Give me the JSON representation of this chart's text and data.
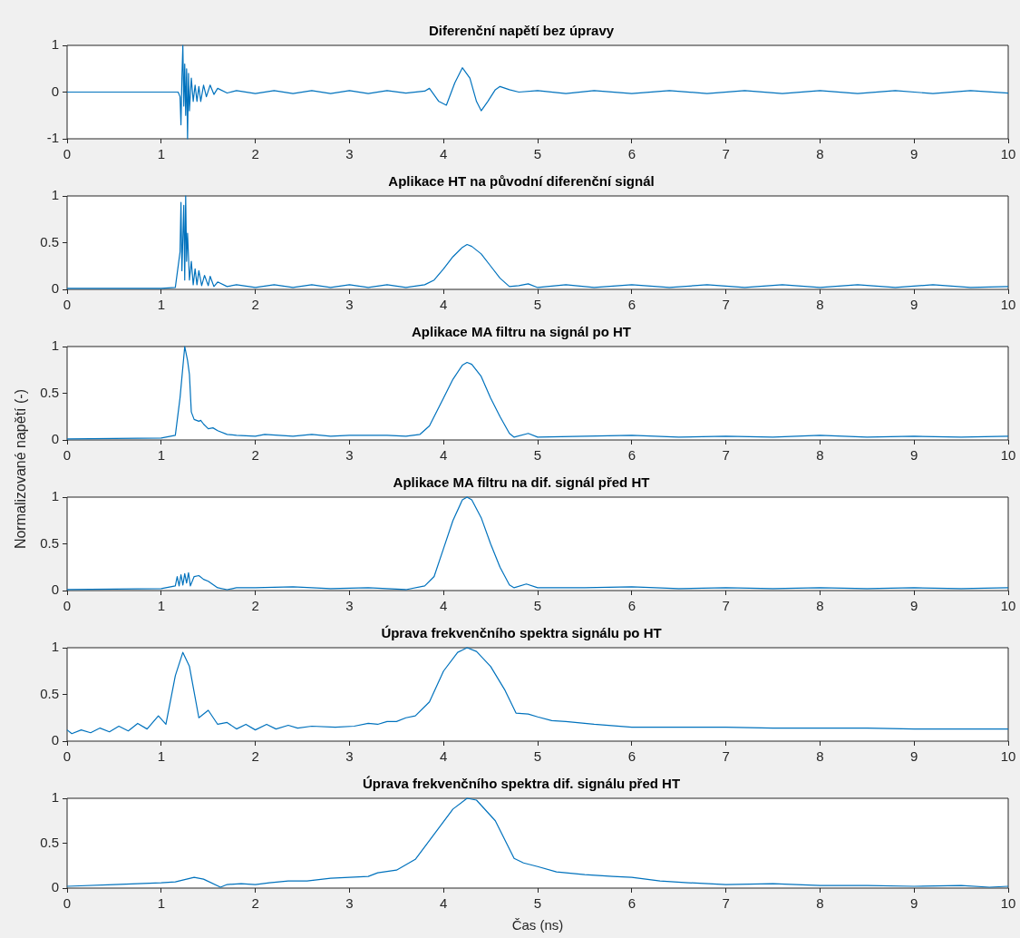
{
  "chart_data": [
    {
      "type": "line",
      "title": "Diferenční napětí bez úpravy",
      "color": "#0072bd",
      "marker": "none",
      "grid": false,
      "xlim": [
        0,
        10
      ],
      "xticks": [
        0,
        1,
        2,
        3,
        4,
        5,
        6,
        7,
        8,
        9,
        10
      ],
      "ylim": [
        -1,
        1
      ],
      "yticks": [
        -1,
        0,
        1
      ],
      "x": [
        0,
        1.18,
        1.2,
        1.21,
        1.22,
        1.23,
        1.24,
        1.25,
        1.26,
        1.27,
        1.28,
        1.29,
        1.3,
        1.32,
        1.34,
        1.36,
        1.38,
        1.4,
        1.42,
        1.45,
        1.48,
        1.52,
        1.56,
        1.6,
        1.7,
        1.8,
        2.0,
        2.2,
        2.4,
        2.6,
        2.8,
        3.0,
        3.2,
        3.4,
        3.6,
        3.8,
        3.85,
        3.95,
        4.03,
        4.12,
        4.2,
        4.28,
        4.35,
        4.4,
        4.47,
        4.55,
        4.6,
        4.7,
        4.8,
        5.0,
        5.3,
        5.6,
        6.0,
        6.4,
        6.8,
        7.2,
        7.6,
        8.0,
        8.4,
        8.8,
        9.2,
        9.6,
        10
      ],
      "values": [
        0,
        0,
        -0.1,
        -0.7,
        0.3,
        1.0,
        -0.3,
        0.6,
        -0.5,
        0.5,
        -1.0,
        0.4,
        -0.4,
        0.3,
        -0.2,
        0.15,
        -0.2,
        0.12,
        -0.2,
        0.15,
        -0.1,
        0.15,
        -0.05,
        0.08,
        -0.02,
        0.03,
        -0.03,
        0.03,
        -0.03,
        0.03,
        -0.03,
        0.03,
        -0.03,
        0.03,
        -0.02,
        0.02,
        0.08,
        -0.2,
        -0.28,
        0.2,
        0.52,
        0.3,
        -0.2,
        -0.4,
        -0.2,
        0.05,
        0.12,
        0.05,
        0,
        0.03,
        -0.03,
        0.03,
        -0.03,
        0.03,
        -0.03,
        0.03,
        -0.03,
        0.03,
        -0.03,
        0.03,
        -0.03,
        0.03,
        -0.02
      ]
    },
    {
      "type": "line",
      "title": "Aplikace HT na původní diferenční signál",
      "color": "#0072bd",
      "marker": "none",
      "grid": false,
      "xlim": [
        0,
        10
      ],
      "xticks": [
        0,
        1,
        2,
        3,
        4,
        5,
        6,
        7,
        8,
        9,
        10
      ],
      "ylim": [
        0,
        1
      ],
      "yticks": [
        0,
        0.5,
        1
      ],
      "x": [
        0,
        1.0,
        1.15,
        1.2,
        1.21,
        1.22,
        1.24,
        1.25,
        1.26,
        1.27,
        1.28,
        1.3,
        1.32,
        1.34,
        1.36,
        1.38,
        1.4,
        1.43,
        1.46,
        1.5,
        1.52,
        1.56,
        1.6,
        1.7,
        1.8,
        2.0,
        2.2,
        2.4,
        2.6,
        2.8,
        3.0,
        3.2,
        3.4,
        3.6,
        3.8,
        3.9,
        4.0,
        4.1,
        4.2,
        4.25,
        4.3,
        4.4,
        4.5,
        4.6,
        4.7,
        4.8,
        4.9,
        5.0,
        5.3,
        5.6,
        6.0,
        6.4,
        6.8,
        7.2,
        7.6,
        8.0,
        8.4,
        8.8,
        9.2,
        9.6,
        10
      ],
      "values": [
        0.01,
        0.01,
        0.02,
        0.4,
        0.93,
        0.2,
        0.9,
        0.1,
        1.0,
        0.3,
        0.6,
        0.1,
        0.3,
        0.05,
        0.22,
        0.05,
        0.2,
        0.04,
        0.15,
        0.04,
        0.14,
        0.03,
        0.08,
        0.03,
        0.05,
        0.02,
        0.05,
        0.02,
        0.05,
        0.02,
        0.05,
        0.02,
        0.05,
        0.02,
        0.05,
        0.1,
        0.22,
        0.35,
        0.45,
        0.48,
        0.46,
        0.38,
        0.25,
        0.12,
        0.03,
        0.04,
        0.06,
        0.02,
        0.05,
        0.02,
        0.05,
        0.02,
        0.05,
        0.02,
        0.05,
        0.02,
        0.05,
        0.02,
        0.05,
        0.02,
        0.03
      ]
    },
    {
      "type": "line",
      "title": "Aplikace MA filtru na signál po HT",
      "color": "#0072bd",
      "marker": "none",
      "grid": false,
      "xlim": [
        0,
        10
      ],
      "xticks": [
        0,
        1,
        2,
        3,
        4,
        5,
        6,
        7,
        8,
        9,
        10
      ],
      "ylim": [
        0,
        1
      ],
      "yticks": [
        0,
        0.5,
        1
      ],
      "x": [
        0,
        1.0,
        1.15,
        1.2,
        1.25,
        1.28,
        1.3,
        1.32,
        1.35,
        1.4,
        1.42,
        1.45,
        1.5,
        1.55,
        1.6,
        1.7,
        1.8,
        2.0,
        2.1,
        2.4,
        2.6,
        2.8,
        3.0,
        3.4,
        3.6,
        3.75,
        3.85,
        4.0,
        4.1,
        4.2,
        4.25,
        4.3,
        4.4,
        4.5,
        4.6,
        4.7,
        4.75,
        4.9,
        5.0,
        5.5,
        6.0,
        6.5,
        7.0,
        7.5,
        8.0,
        8.5,
        9.0,
        9.5,
        10
      ],
      "values": [
        0.01,
        0.02,
        0.05,
        0.45,
        1.0,
        0.85,
        0.7,
        0.3,
        0.22,
        0.2,
        0.21,
        0.17,
        0.12,
        0.13,
        0.1,
        0.06,
        0.05,
        0.04,
        0.06,
        0.04,
        0.06,
        0.04,
        0.05,
        0.05,
        0.04,
        0.06,
        0.15,
        0.45,
        0.65,
        0.8,
        0.83,
        0.81,
        0.68,
        0.45,
        0.25,
        0.07,
        0.03,
        0.07,
        0.03,
        0.04,
        0.05,
        0.03,
        0.04,
        0.03,
        0.05,
        0.03,
        0.04,
        0.03,
        0.04
      ]
    },
    {
      "type": "line",
      "title": "Aplikace MA filtru na dif. signál před HT",
      "ylabel": "Normalizované napětí (-)",
      "color": "#0072bd",
      "marker": "none",
      "grid": false,
      "xlim": [
        0,
        10
      ],
      "xticks": [
        0,
        1,
        2,
        3,
        4,
        5,
        6,
        7,
        8,
        9,
        10
      ],
      "ylim": [
        0,
        1
      ],
      "yticks": [
        0,
        0.5,
        1
      ],
      "x": [
        0,
        1.0,
        1.15,
        1.17,
        1.19,
        1.21,
        1.23,
        1.25,
        1.27,
        1.29,
        1.31,
        1.35,
        1.4,
        1.45,
        1.5,
        1.6,
        1.7,
        1.8,
        2.0,
        2.4,
        2.8,
        3.2,
        3.6,
        3.8,
        3.9,
        4.0,
        4.1,
        4.2,
        4.25,
        4.3,
        4.4,
        4.5,
        4.6,
        4.7,
        4.75,
        4.88,
        5.0,
        5.5,
        6.0,
        6.5,
        7.0,
        7.5,
        8.0,
        8.5,
        9.0,
        9.5,
        10
      ],
      "values": [
        0.01,
        0.02,
        0.05,
        0.15,
        0.05,
        0.17,
        0.06,
        0.18,
        0.08,
        0.19,
        0.05,
        0.15,
        0.16,
        0.12,
        0.1,
        0.03,
        0.01,
        0.03,
        0.03,
        0.04,
        0.02,
        0.03,
        0.01,
        0.05,
        0.15,
        0.45,
        0.75,
        0.97,
        1.0,
        0.97,
        0.78,
        0.5,
        0.25,
        0.06,
        0.03,
        0.07,
        0.03,
        0.03,
        0.04,
        0.02,
        0.03,
        0.02,
        0.03,
        0.02,
        0.03,
        0.02,
        0.03
      ]
    },
    {
      "type": "line",
      "title": "Úprava frekvenčního spektra signálu po HT",
      "color": "#0072bd",
      "marker": "none",
      "grid": false,
      "xlim": [
        0,
        10
      ],
      "xticks": [
        0,
        1,
        2,
        3,
        4,
        5,
        6,
        7,
        8,
        9,
        10
      ],
      "ylim": [
        0,
        1
      ],
      "yticks": [
        0,
        0.5,
        1
      ],
      "x": [
        0,
        0.05,
        0.15,
        0.25,
        0.35,
        0.45,
        0.55,
        0.65,
        0.75,
        0.85,
        0.97,
        1.05,
        1.15,
        1.23,
        1.3,
        1.4,
        1.5,
        1.6,
        1.7,
        1.8,
        1.9,
        2.0,
        2.12,
        2.22,
        2.35,
        2.45,
        2.6,
        2.85,
        3.05,
        3.2,
        3.3,
        3.4,
        3.5,
        3.6,
        3.7,
        3.85,
        4.0,
        4.15,
        4.25,
        4.35,
        4.5,
        4.65,
        4.77,
        4.9,
        5.0,
        5.15,
        5.3,
        5.6,
        6.0,
        6.5,
        7.0,
        7.5,
        8.0,
        8.5,
        9.0,
        9.5,
        10
      ],
      "values": [
        0.12,
        0.08,
        0.12,
        0.09,
        0.14,
        0.1,
        0.16,
        0.11,
        0.19,
        0.13,
        0.27,
        0.18,
        0.7,
        0.95,
        0.8,
        0.25,
        0.33,
        0.18,
        0.2,
        0.13,
        0.18,
        0.12,
        0.18,
        0.13,
        0.17,
        0.14,
        0.16,
        0.15,
        0.16,
        0.19,
        0.18,
        0.21,
        0.21,
        0.25,
        0.27,
        0.42,
        0.75,
        0.95,
        1.0,
        0.96,
        0.8,
        0.55,
        0.3,
        0.29,
        0.26,
        0.22,
        0.21,
        0.18,
        0.15,
        0.15,
        0.15,
        0.14,
        0.14,
        0.14,
        0.13,
        0.13,
        0.13
      ]
    },
    {
      "type": "line",
      "title": "Úprava frekvenčního spektra dif. signálu před HT",
      "xlabel": "Čas (ns)",
      "color": "#0072bd",
      "marker": "none",
      "grid": false,
      "xlim": [
        0,
        10
      ],
      "xticks": [
        0,
        1,
        2,
        3,
        4,
        5,
        6,
        7,
        8,
        9,
        10
      ],
      "ylim": [
        0,
        1
      ],
      "yticks": [
        0,
        0.5,
        1
      ],
      "x": [
        0,
        0.5,
        1.0,
        1.15,
        1.35,
        1.45,
        1.63,
        1.7,
        1.85,
        2.0,
        2.15,
        2.35,
        2.55,
        2.8,
        3.0,
        3.2,
        3.3,
        3.5,
        3.7,
        3.9,
        4.1,
        4.25,
        4.35,
        4.55,
        4.75,
        4.85,
        5.0,
        5.2,
        5.5,
        5.8,
        6.0,
        6.3,
        6.6,
        7.0,
        7.5,
        8.0,
        8.5,
        9.0,
        9.5,
        9.8,
        10
      ],
      "values": [
        0.02,
        0.04,
        0.06,
        0.07,
        0.12,
        0.1,
        0.01,
        0.04,
        0.05,
        0.04,
        0.06,
        0.08,
        0.08,
        0.11,
        0.12,
        0.13,
        0.17,
        0.2,
        0.32,
        0.6,
        0.88,
        1.0,
        0.98,
        0.75,
        0.33,
        0.28,
        0.24,
        0.18,
        0.15,
        0.13,
        0.12,
        0.08,
        0.06,
        0.04,
        0.05,
        0.03,
        0.03,
        0.02,
        0.03,
        0.01,
        0.02
      ]
    }
  ]
}
